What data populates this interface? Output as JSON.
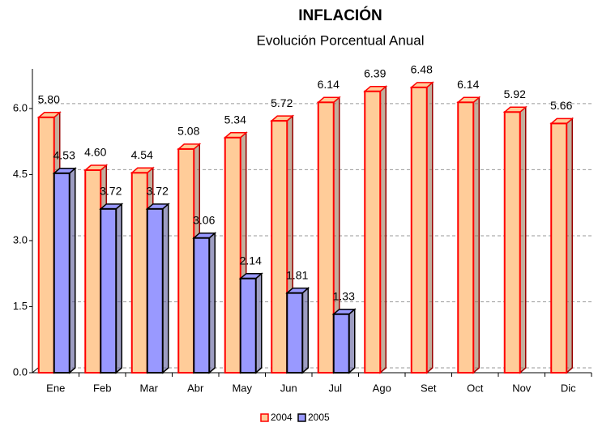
{
  "chart_data": {
    "type": "bar3d",
    "title": "INFLACIÓN",
    "subtitle": "Evolución Porcentual Anual",
    "categories": [
      "Ene",
      "Feb",
      "Mar",
      "Abr",
      "May",
      "Jun",
      "Jul",
      "Ago",
      "Set",
      "Oct",
      "Nov",
      "Dic"
    ],
    "series": [
      {
        "name": "2004",
        "color": "#ffcc99",
        "edge": "#ff0000",
        "values": [
          5.8,
          4.6,
          4.54,
          5.08,
          5.34,
          5.72,
          6.14,
          6.39,
          6.48,
          6.14,
          5.92,
          5.66
        ],
        "value_labels": [
          "5.80",
          "4.60",
          "4.54",
          "5.08",
          "5.34",
          "5.72",
          "6.14",
          "6.39",
          "6.48",
          "6.14",
          "5.92",
          "5.66"
        ]
      },
      {
        "name": "2005",
        "color": "#9999ff",
        "edge": "#000000",
        "values": [
          4.53,
          3.72,
          3.72,
          3.06,
          2.14,
          1.81,
          1.33,
          null,
          null,
          null,
          null,
          null
        ],
        "value_labels": [
          "4.53",
          "3.72",
          "3.72",
          "3.06",
          "2.14",
          "1.81",
          "1.33",
          null,
          null,
          null,
          null,
          null
        ]
      }
    ],
    "ylim": [
      0,
      6.9
    ],
    "yticks": [
      {
        "value": 0,
        "label": "0.0"
      },
      {
        "value": 1.5,
        "label": "1.5"
      },
      {
        "value": 3,
        "label": "3.0"
      },
      {
        "value": 4.5,
        "label": "4.5"
      },
      {
        "value": 6,
        "label": "6.0"
      }
    ],
    "grid": true,
    "legend": "bottom"
  }
}
